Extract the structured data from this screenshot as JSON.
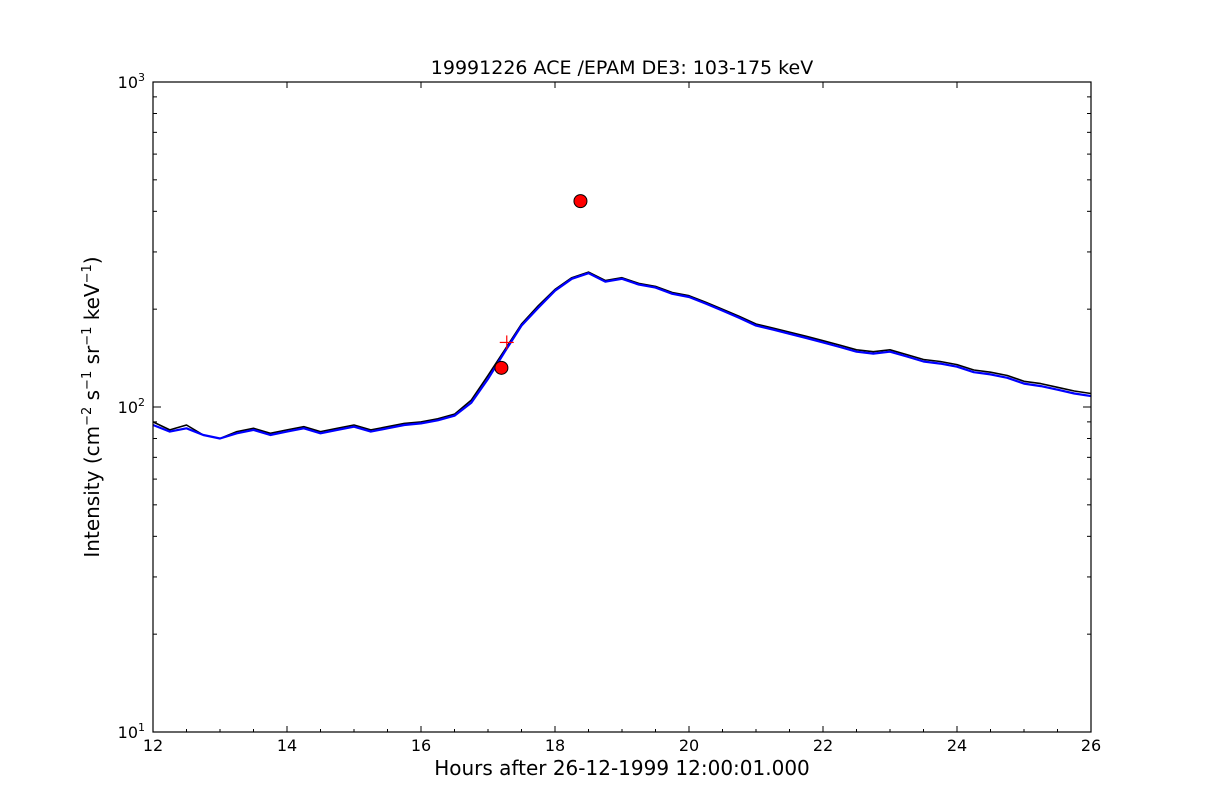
{
  "chart_data": {
    "type": "line",
    "title": "19991226 ACE /EPAM DE3: 103-175 keV",
    "xlabel": "Hours after 26-12-1999 12:00:01.000",
    "ylabel": {
      "prefix": "Intensity (cm",
      "cm_exp": "−2",
      "s": " s",
      "s_exp": "−1",
      "sr": " sr",
      "sr_exp": "−1",
      "kev": " keV",
      "kev_exp": "−1",
      "suffix": ")"
    },
    "xlim": [
      12,
      26
    ],
    "ylim": [
      10,
      1000
    ],
    "yscale": "log",
    "grid": false,
    "x_ticks": [
      12,
      14,
      16,
      18,
      20,
      22,
      24,
      26
    ],
    "x_tick_labels": [
      "12",
      "14",
      "16",
      "18",
      "20",
      "22",
      "24",
      "26"
    ],
    "y_ticks": [
      10,
      100,
      1000
    ],
    "y_tick_labels": [
      {
        "base": "10",
        "exp": "1"
      },
      {
        "base": "10",
        "exp": "2"
      },
      {
        "base": "10",
        "exp": "3"
      }
    ],
    "series": [
      {
        "color": "#000000",
        "x": [
          12.0,
          12.25,
          12.5,
          12.75,
          13.0,
          13.25,
          13.5,
          13.75,
          14.0,
          14.25,
          14.5,
          14.75,
          15.0,
          15.25,
          15.5,
          15.75,
          16.0,
          16.25,
          16.5,
          16.75,
          17.0,
          17.25,
          17.5,
          17.75,
          18.0,
          18.25,
          18.5,
          18.75,
          19.0,
          19.25,
          19.5,
          19.75,
          20.0,
          20.25,
          20.5,
          20.75,
          21.0,
          21.25,
          21.5,
          21.75,
          22.0,
          22.25,
          22.5,
          22.75,
          23.0,
          23.25,
          23.5,
          23.75,
          24.0,
          24.25,
          24.5,
          24.75,
          25.0,
          25.25,
          25.5,
          25.75,
          26.0
        ],
        "y": [
          90,
          85,
          88,
          82,
          80,
          84,
          86,
          83,
          85,
          87,
          84,
          86,
          88,
          85,
          87,
          89,
          90,
          92,
          95,
          105,
          125,
          150,
          180,
          205,
          230,
          250,
          260,
          245,
          250,
          240,
          235,
          225,
          220,
          210,
          200,
          190,
          180,
          175,
          170,
          165,
          160,
          155,
          150,
          148,
          150,
          145,
          140,
          138,
          135,
          130,
          128,
          125,
          120,
          118,
          115,
          112,
          110
        ]
      },
      {
        "color": "#0000ff",
        "x": [
          12.0,
          12.25,
          12.5,
          12.75,
          13.0,
          13.25,
          13.5,
          13.75,
          14.0,
          14.25,
          14.5,
          14.75,
          15.0,
          15.25,
          15.5,
          15.75,
          16.0,
          16.25,
          16.5,
          16.75,
          17.0,
          17.25,
          17.5,
          17.75,
          18.0,
          18.25,
          18.5,
          18.75,
          19.0,
          19.25,
          19.5,
          19.75,
          20.0,
          20.25,
          20.5,
          20.75,
          21.0,
          21.25,
          21.5,
          21.75,
          22.0,
          22.25,
          22.5,
          22.75,
          23.0,
          23.25,
          23.5,
          23.75,
          24.0,
          24.25,
          24.5,
          24.75,
          25.0,
          25.25,
          25.5,
          25.75,
          26.0
        ],
        "y": [
          88,
          84,
          86,
          82,
          80,
          83,
          85,
          82,
          84,
          86,
          83,
          85,
          87,
          84,
          86,
          88,
          89,
          91,
          94,
          103,
          122,
          148,
          178,
          202,
          228,
          248,
          258,
          243,
          248,
          238,
          233,
          223,
          218,
          208,
          198,
          188,
          178,
          173,
          168,
          163,
          158,
          153,
          148,
          146,
          148,
          143,
          138,
          136,
          133,
          128,
          126,
          123,
          118,
          116,
          113,
          110,
          108
        ]
      }
    ],
    "markers": [
      {
        "shape": "circle",
        "x": 18.38,
        "y": 430,
        "color": "#ff0000"
      },
      {
        "shape": "circle",
        "x": 17.2,
        "y": 132,
        "color": "#ff0000"
      },
      {
        "shape": "plus",
        "x": 17.28,
        "y": 158,
        "color": "#ff0000"
      }
    ]
  }
}
